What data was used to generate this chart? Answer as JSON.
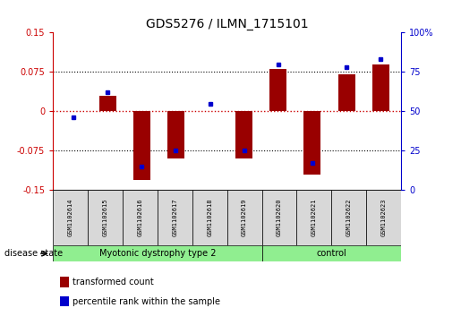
{
  "title": "GDS5276 / ILMN_1715101",
  "samples": [
    "GSM1102614",
    "GSM1102615",
    "GSM1102616",
    "GSM1102617",
    "GSM1102618",
    "GSM1102619",
    "GSM1102620",
    "GSM1102621",
    "GSM1102622",
    "GSM1102623"
  ],
  "red_values": [
    0.0,
    0.03,
    -0.13,
    -0.09,
    0.0,
    -0.09,
    0.08,
    -0.12,
    0.07,
    0.09
  ],
  "blue_values": [
    46,
    62,
    15,
    25,
    55,
    25,
    80,
    17,
    78,
    83
  ],
  "disease_groups": [
    {
      "label": "Myotonic dystrophy type 2",
      "start": 0,
      "end": 6,
      "color": "#90EE90"
    },
    {
      "label": "control",
      "start": 6,
      "end": 10,
      "color": "#90EE90"
    }
  ],
  "ylim_left": [
    -0.15,
    0.15
  ],
  "ylim_right": [
    0,
    100
  ],
  "yticks_left": [
    -0.15,
    -0.075,
    0,
    0.075,
    0.15
  ],
  "yticks_right": [
    0,
    25,
    50,
    75,
    100
  ],
  "ytick_labels_left": [
    "-0.15",
    "-0.075",
    "0",
    "0.075",
    "0.15"
  ],
  "ytick_labels_right": [
    "0",
    "25",
    "50",
    "75",
    "100%"
  ],
  "left_axis_color": "#cc0000",
  "right_axis_color": "#0000cc",
  "bar_color": "#990000",
  "dot_color": "#0000cc",
  "disease_state_label": "disease state",
  "legend_red": "transformed count",
  "legend_blue": "percentile rank within the sample",
  "sample_bg": "#d8d8d8",
  "plot_bg": "#ffffff",
  "grid_color": "#000000",
  "zero_line_color": "#cc0000",
  "fig_width": 5.15,
  "fig_height": 3.63,
  "dpi": 100,
  "bar_width": 0.5
}
